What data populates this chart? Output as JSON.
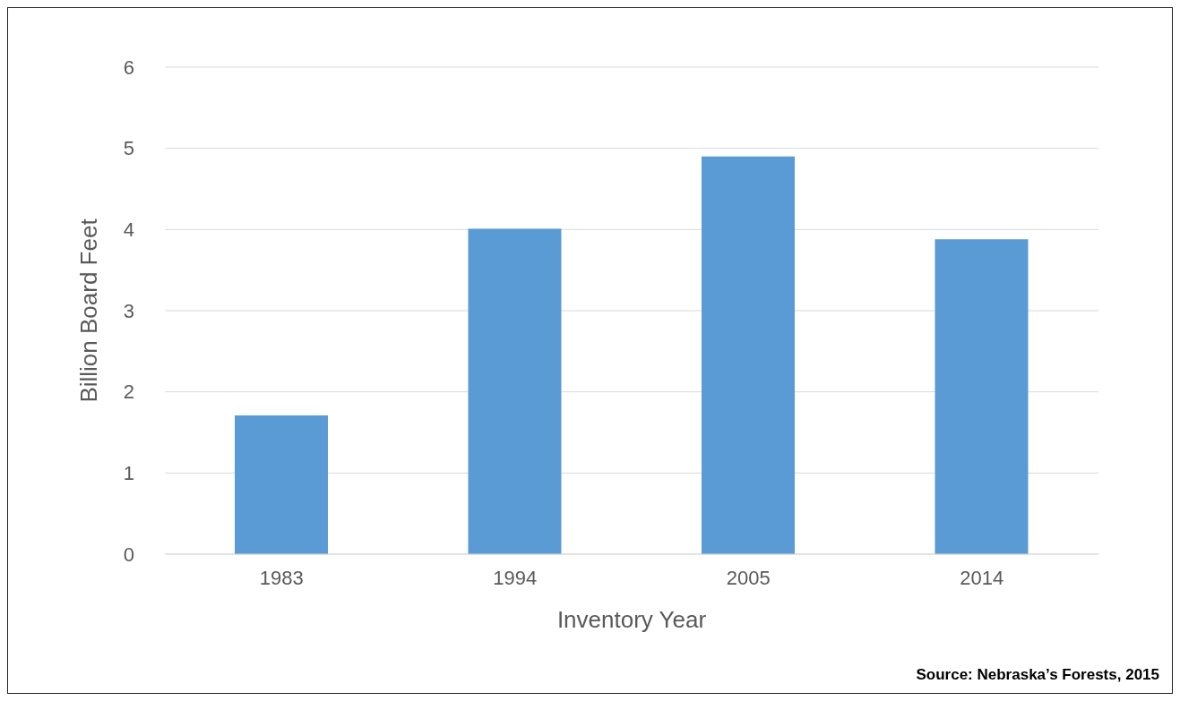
{
  "chart_data": {
    "type": "bar",
    "xlabel": "Inventory Year",
    "ylabel": "Billion Board Feet",
    "categories": [
      "1983",
      "1994",
      "2005",
      "2014"
    ],
    "values": [
      1.71,
      4.01,
      4.9,
      3.88
    ],
    "color": "#5b9bd5",
    "ylim": [
      0,
      6
    ],
    "yticks": [
      0,
      1,
      2,
      3,
      4,
      5,
      6
    ],
    "grid": "y",
    "annotations": [
      "Source: Nebraska’s Forests, 2015"
    ]
  }
}
